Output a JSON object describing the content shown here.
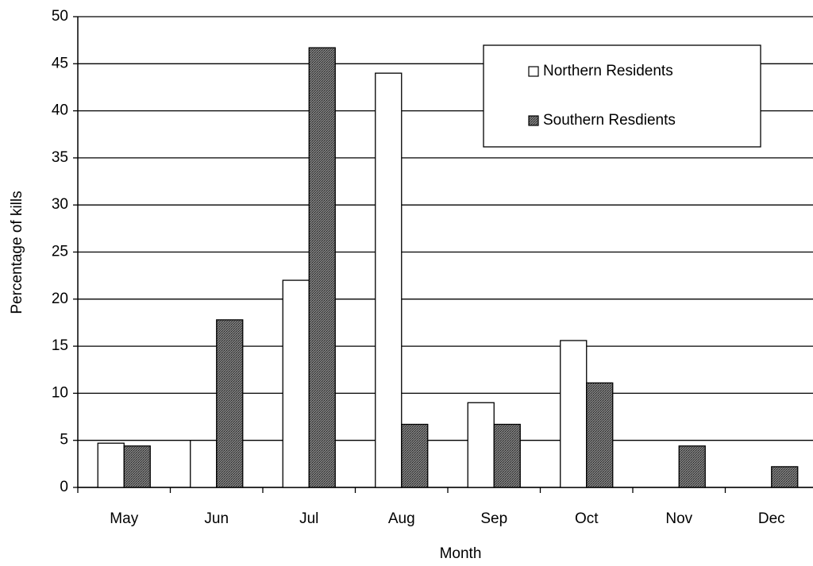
{
  "chart_data": {
    "type": "bar",
    "x_label": "Month",
    "y_label": "Percentage of kills",
    "categories": [
      "May",
      "Jun",
      "Jul",
      "Aug",
      "Sep",
      "Oct",
      "Nov",
      "Dec"
    ],
    "series": [
      {
        "name": "Northern Residents",
        "color": "#ffffff",
        "values": [
          4.7,
          5,
          22,
          44,
          9,
          15.6,
          0,
          0
        ]
      },
      {
        "name": "Southern Resdients",
        "color": "#7a7a7a",
        "values": [
          4.4,
          17.8,
          46.7,
          6.7,
          6.7,
          11.1,
          4.4,
          2.2
        ]
      }
    ],
    "ylim": [
      0,
      50
    ],
    "yticks": [
      0,
      5,
      10,
      15,
      20,
      25,
      30,
      35,
      40,
      45,
      50
    ],
    "grid": true,
    "legend": "upper right"
  }
}
